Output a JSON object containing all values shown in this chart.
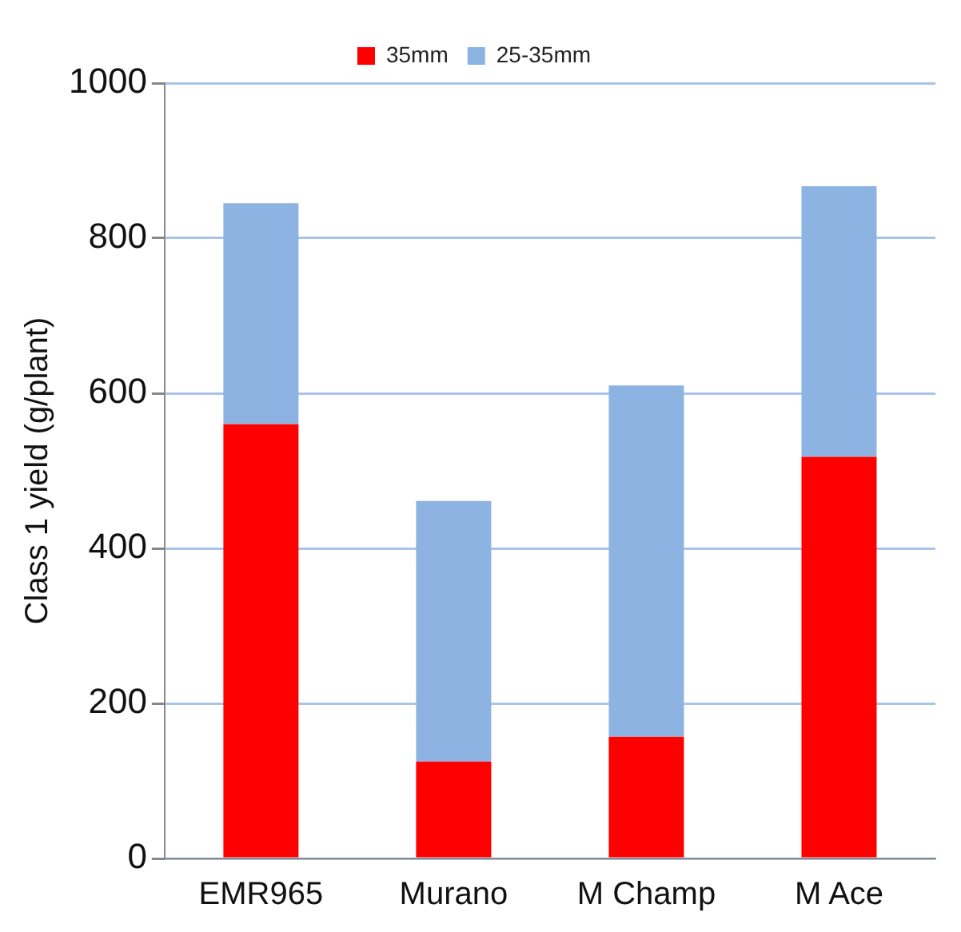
{
  "chart_data": {
    "type": "bar",
    "stacked": true,
    "ylabel": "Class 1 yield (g/plant)",
    "categories": [
      "EMR965",
      "Murano",
      "M Champ",
      "M Ace"
    ],
    "series": [
      {
        "name": "35mm",
        "color": "#ff0000",
        "values": [
          560,
          125,
          157,
          518
        ]
      },
      {
        "name": "25-35mm",
        "color": "#8db3e2",
        "values": [
          285,
          336,
          453,
          349
        ]
      }
    ],
    "ylim": [
      0,
      1000
    ],
    "yticks": [
      0,
      200,
      400,
      600,
      800,
      1000
    ],
    "grid": "y",
    "legend": "top"
  }
}
